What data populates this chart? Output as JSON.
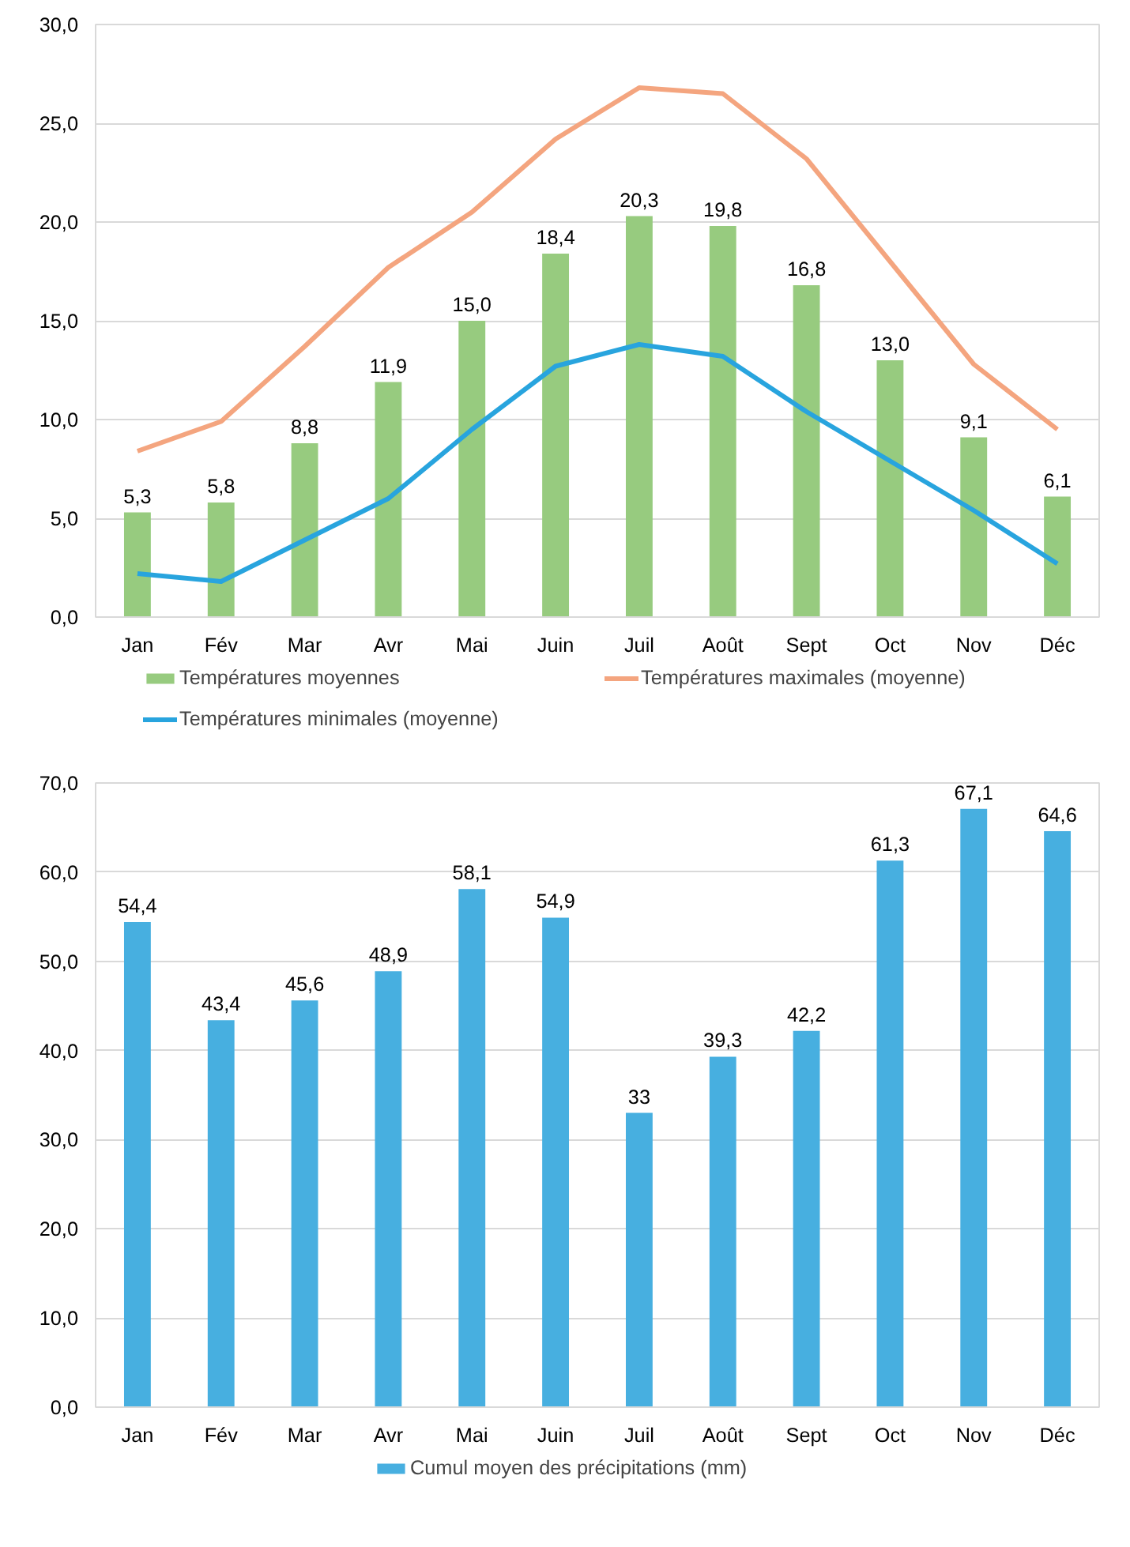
{
  "chart_data": [
    {
      "type": "bar",
      "categories": [
        "Jan",
        "Fév",
        "Mar",
        "Avr",
        "Mai",
        "Juin",
        "Juil",
        "Août",
        "Sept",
        "Oct",
        "Nov",
        "Déc"
      ],
      "series": [
        {
          "name": "Températures moyennes",
          "type": "bar",
          "color": "#97cb7f",
          "values": [
            5.3,
            5.8,
            8.8,
            11.9,
            15.0,
            18.4,
            20.3,
            19.8,
            16.8,
            13.0,
            9.1,
            6.1
          ],
          "value_labels": [
            "5,3",
            "5,8",
            "8,8",
            "11,9",
            "15,0",
            "18,4",
            "20,3",
            "19,8",
            "16,8",
            "13,0",
            "9,1",
            "6,1"
          ]
        },
        {
          "name": "Températures maximales (moyenne)",
          "type": "line",
          "color": "#f4a57f",
          "values": [
            8.4,
            9.9,
            13.7,
            17.7,
            20.5,
            24.2,
            26.8,
            26.5,
            23.2,
            18.0,
            12.8,
            9.5
          ]
        },
        {
          "name": "Températures minimales (moyenne)",
          "type": "line",
          "color": "#28a4de",
          "values": [
            2.2,
            1.8,
            3.9,
            6.0,
            9.5,
            12.7,
            13.8,
            13.2,
            10.4,
            7.9,
            5.4,
            2.7
          ]
        }
      ],
      "ylim": [
        0,
        30
      ],
      "yticks": [
        {
          "value": 0,
          "label": "0,0"
        },
        {
          "value": 5,
          "label": "5,0"
        },
        {
          "value": 10,
          "label": "10,0"
        },
        {
          "value": 15,
          "label": "15,0"
        },
        {
          "value": 20,
          "label": "20,0"
        },
        {
          "value": 25,
          "label": "25,0"
        },
        {
          "value": 30,
          "label": "30,0"
        }
      ],
      "grid": "y",
      "legend": "bottom",
      "marker": "none",
      "line_style": "solid"
    },
    {
      "type": "bar",
      "categories": [
        "Jan",
        "Fév",
        "Mar",
        "Avr",
        "Mai",
        "Juin",
        "Juil",
        "Août",
        "Sept",
        "Oct",
        "Nov",
        "Déc"
      ],
      "series": [
        {
          "name": "Cumul moyen des précipitations (mm)",
          "color": "#47afe0",
          "values": [
            54.4,
            43.4,
            45.6,
            48.9,
            58.1,
            54.9,
            33,
            39.3,
            42.2,
            61.3,
            67.1,
            64.6
          ],
          "value_labels": [
            "54,4",
            "43,4",
            "45,6",
            "48,9",
            "58,1",
            "54,9",
            "33",
            "39,3",
            "42,2",
            "61,3",
            "67,1",
            "64,6"
          ]
        }
      ],
      "ylim": [
        0,
        70
      ],
      "yticks": [
        {
          "value": 0,
          "label": "0,0"
        },
        {
          "value": 10,
          "label": "10,0"
        },
        {
          "value": 20,
          "label": "20,0"
        },
        {
          "value": 30,
          "label": "30,0"
        },
        {
          "value": 40,
          "label": "40,0"
        },
        {
          "value": 50,
          "label": "50,0"
        },
        {
          "value": 60,
          "label": "60,0"
        },
        {
          "value": 70,
          "label": "70,0"
        }
      ],
      "grid": "y",
      "legend": "bottom"
    }
  ]
}
